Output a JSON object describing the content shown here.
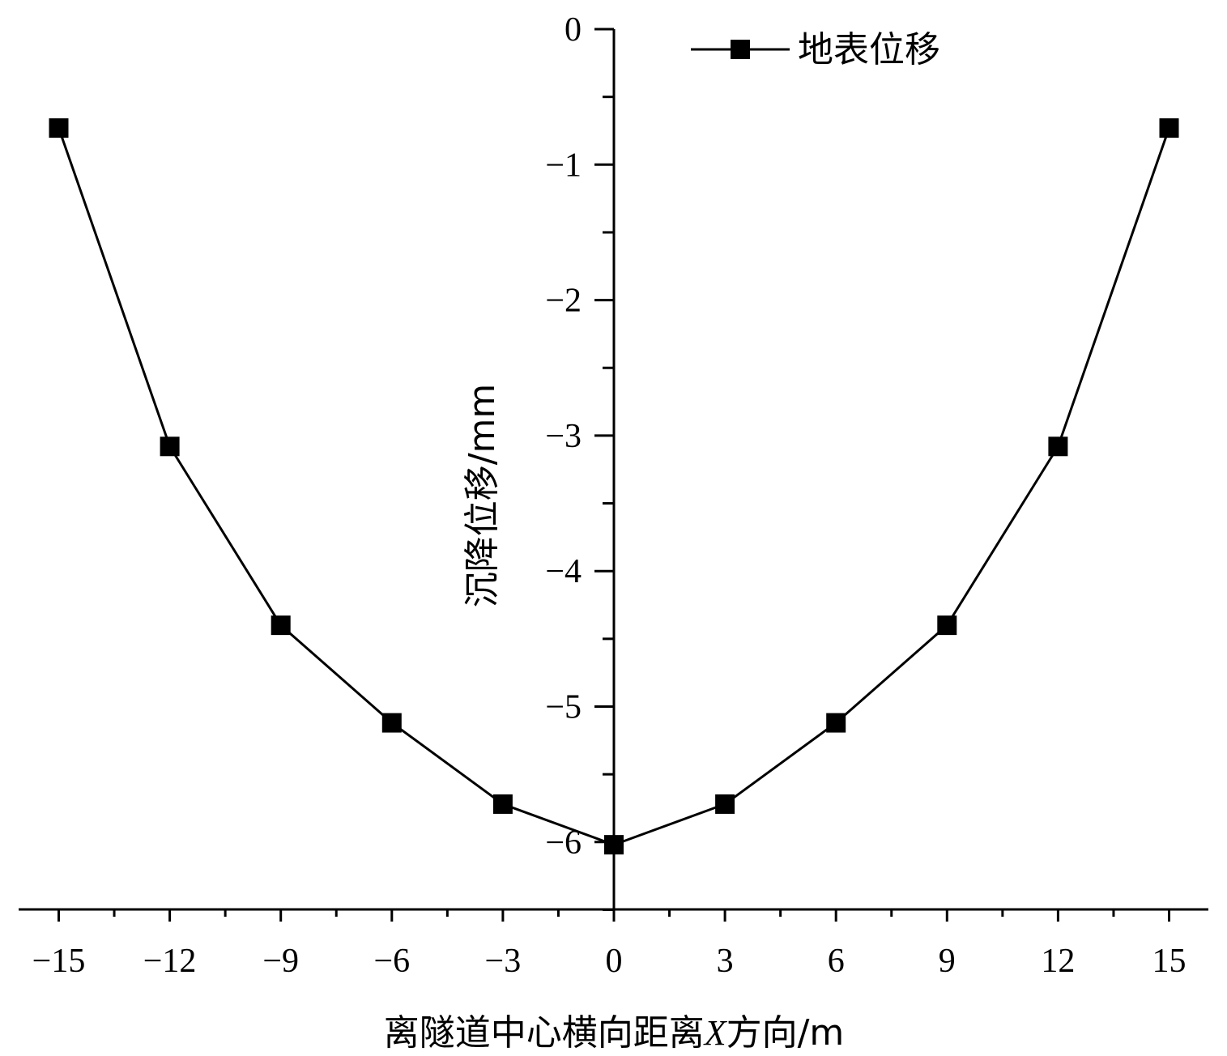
{
  "chart_data": {
    "type": "line",
    "xlabel_parts": [
      "离隧道中心横向距离",
      "X",
      "方向/m"
    ],
    "ylabel": "沉降位移/mm",
    "x_ticks": [
      "−15",
      "−12",
      "−9",
      "−6",
      "−3",
      "0",
      "3",
      "6",
      "9",
      "12",
      "15"
    ],
    "y_ticks": [
      "0",
      "−1",
      "−2",
      "−3",
      "−4",
      "−5",
      "−6"
    ],
    "xlim": [
      -16,
      16
    ],
    "ylim": [
      -6.5,
      0
    ],
    "series": [
      {
        "name": "地表位移",
        "x": [
          -15,
          -12,
          -9,
          -6,
          -3,
          0,
          3,
          6,
          9,
          12,
          15
        ],
        "y": [
          -0.73,
          -3.08,
          -4.4,
          -5.12,
          -5.72,
          -6.02,
          -5.72,
          -5.12,
          -4.4,
          -3.08,
          -0.73
        ],
        "marker": "square",
        "color": "#000000"
      }
    ],
    "legend_position": "top-right",
    "grid": false
  }
}
